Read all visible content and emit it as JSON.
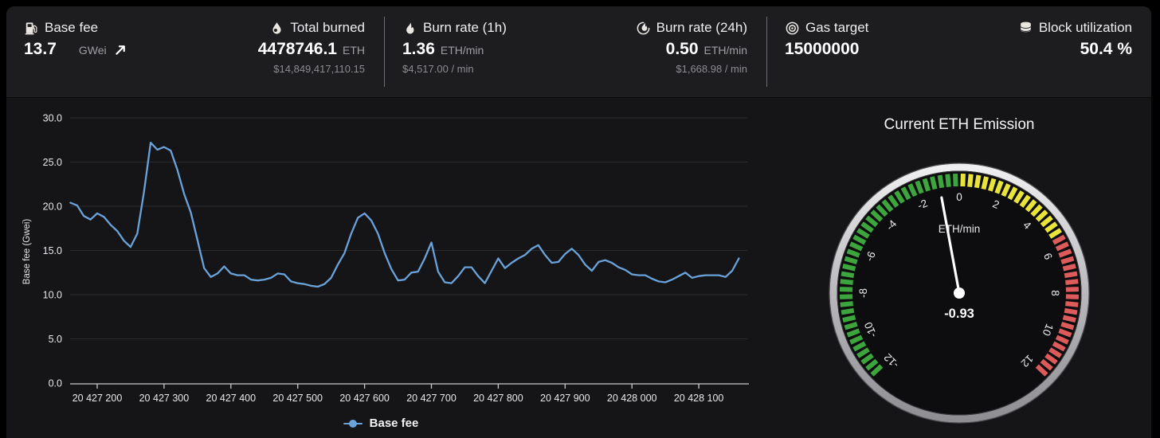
{
  "header": {
    "stats": [
      {
        "id": "base-fee",
        "icon": "gas-pump-icon",
        "label": "Base fee",
        "value": "13.7",
        "unit": "GWei",
        "trend": "up",
        "usd": ""
      },
      {
        "id": "total-burned",
        "icon": "droplet-icon",
        "label": "Total burned",
        "value": "4478746.1",
        "unit": "ETH",
        "usd": "$14,849,417,110.15"
      },
      {
        "id": "burn-rate-1h",
        "icon": "flame-icon",
        "label": "Burn rate (1h)",
        "value": "1.36",
        "unit": "ETH/min",
        "usd": "$4,517.00 / min"
      },
      {
        "id": "burn-rate-24h",
        "icon": "flame-circle-icon",
        "label": "Burn rate (24h)",
        "value": "0.50",
        "unit": "ETH/min",
        "usd": "$1,668.98 / min"
      },
      {
        "id": "gas-target",
        "icon": "target-icon",
        "label": "Gas target",
        "value": "15000000",
        "unit": "",
        "usd": ""
      },
      {
        "id": "block-utilization",
        "icon": "database-icon",
        "label": "Block utilization",
        "value": "50.4 %",
        "unit": "",
        "usd": ""
      }
    ]
  },
  "chart_data": {
    "type": "line",
    "title": "",
    "xlabel": "",
    "ylabel": "Base fee (Gwei)",
    "legend": "Base fee",
    "legend_position": "bottom-center",
    "grid": true,
    "line_color": "#6aa2da",
    "ylim": [
      0,
      30
    ],
    "y_ticks": [
      {
        "v": 0,
        "label": "0.0"
      },
      {
        "v": 5,
        "label": "5.0"
      },
      {
        "v": 10,
        "label": "10.0"
      },
      {
        "v": 15,
        "label": "15.0"
      },
      {
        "v": 20,
        "label": "20.0"
      },
      {
        "v": 25,
        "label": "25.0"
      },
      {
        "v": 30,
        "label": "30.0"
      }
    ],
    "x_ticks": [
      {
        "v": 20427200,
        "label": "20 427 200"
      },
      {
        "v": 20427300,
        "label": "20 427 300"
      },
      {
        "v": 20427400,
        "label": "20 427 400"
      },
      {
        "v": 20427500,
        "label": "20 427 500"
      },
      {
        "v": 20427600,
        "label": "20 427 600"
      },
      {
        "v": 20427700,
        "label": "20 427 700"
      },
      {
        "v": 20427800,
        "label": "20 427 800"
      },
      {
        "v": 20427900,
        "label": "20 427 900"
      },
      {
        "v": 20428000,
        "label": "20 428 000"
      },
      {
        "v": 20428100,
        "label": "20 428 100"
      }
    ],
    "series": [
      {
        "name": "Base fee",
        "x_start": 20427160,
        "x_step": 10,
        "values": [
          20.4,
          20.1,
          18.9,
          18.5,
          19.2,
          18.8,
          17.9,
          17.2,
          16.1,
          15.4,
          16.9,
          21.6,
          27.2,
          26.4,
          26.7,
          26.3,
          24.1,
          21.4,
          19.3,
          16.2,
          13.0,
          12.0,
          12.4,
          13.2,
          12.4,
          12.2,
          12.2,
          11.7,
          11.6,
          11.7,
          11.9,
          12.4,
          12.3,
          11.5,
          11.3,
          11.2,
          11.0,
          10.9,
          11.2,
          11.9,
          13.4,
          14.7,
          16.9,
          18.7,
          19.2,
          18.4,
          16.9,
          14.7,
          12.9,
          11.6,
          11.7,
          12.5,
          12.6,
          14.1,
          15.9,
          12.6,
          11.4,
          11.3,
          12.1,
          13.1,
          13.1,
          12.1,
          11.3,
          12.7,
          14.1,
          13.0,
          13.6,
          14.1,
          14.5,
          15.2,
          15.6,
          14.5,
          13.6,
          13.7,
          14.6,
          15.2,
          14.5,
          13.4,
          12.7,
          13.7,
          13.9,
          13.6,
          13.1,
          12.8,
          12.3,
          12.2,
          12.2,
          11.8,
          11.5,
          11.4,
          11.7,
          12.1,
          12.5,
          11.9,
          12.1,
          12.2,
          12.2,
          12.2,
          12.0,
          12.7,
          14.1
        ]
      }
    ]
  },
  "gauge": {
    "title": "Current ETH Emission",
    "unit": "ETH/min",
    "value": -0.93,
    "value_label": "-0.93",
    "min": -12,
    "max": 12,
    "tick_labels": [
      "-12",
      "-10",
      "-8",
      "-6",
      "-4",
      "-2",
      "0",
      "2",
      "4",
      "6",
      "8",
      "10",
      "12"
    ],
    "zones": [
      {
        "from": -12,
        "to": 0,
        "color": "#3da53d"
      },
      {
        "from": 0,
        "to": 5.34,
        "color": "#e9e43a"
      },
      {
        "from": 5.34,
        "to": 12,
        "color": "#dd5b5b"
      }
    ]
  },
  "colors": {
    "page_bg": "#000000",
    "header_bg": "#1d1d20",
    "body_bg": "#151518",
    "accent_line": "#6aa2da",
    "grid": "#2b2a2d",
    "axis": "#c9c9cb",
    "gauge_green": "#3da53d",
    "gauge_yellow": "#e9e43a",
    "gauge_red": "#dd5b5b"
  }
}
